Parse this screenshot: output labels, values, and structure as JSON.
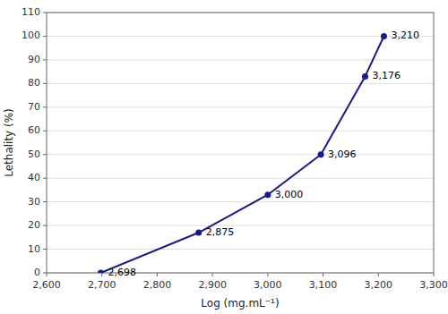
{
  "chart_data": {
    "type": "line",
    "x": [
      2698,
      2875,
      3000,
      3096,
      3176,
      3210
    ],
    "y": [
      0,
      17,
      33,
      50,
      83,
      100
    ],
    "point_labels": [
      "2,698",
      "2,875",
      "3,000",
      "3,096",
      "3,176",
      "3,210"
    ],
    "x_label": "Log (mg.mL⁻¹)",
    "y_label": "Lethality (%)",
    "xlim": [
      2600,
      3300
    ],
    "ylim": [
      0,
      110
    ],
    "xticks": [
      {
        "value": 2600,
        "label": "2,600"
      },
      {
        "value": 2700,
        "label": "2,700"
      },
      {
        "value": 2800,
        "label": "2,800"
      },
      {
        "value": 2900,
        "label": "2,900"
      },
      {
        "value": 3000,
        "label": "3,000"
      },
      {
        "value": 3100,
        "label": "3,100"
      },
      {
        "value": 3200,
        "label": "3,200"
      },
      {
        "value": 3300,
        "label": "3,300"
      }
    ],
    "yticks": [
      0,
      10,
      20,
      30,
      40,
      50,
      60,
      70,
      80,
      90,
      100,
      110
    ],
    "color": "#1a1a8c",
    "marker": "circle",
    "grid": "y"
  }
}
